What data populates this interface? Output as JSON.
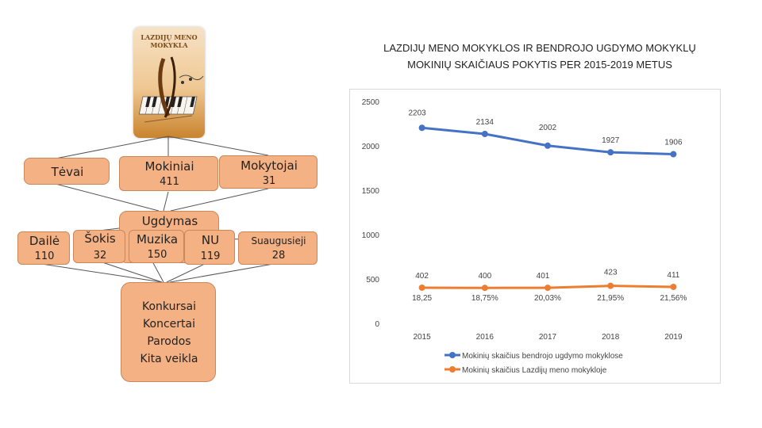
{
  "logo": {
    "line1": "LAZDIJŲ MENO",
    "line2": "MOKYKLA"
  },
  "org": {
    "tevai": "Tėvai",
    "mokiniai": {
      "label": "Mokiniai",
      "value": "411"
    },
    "mokytojai": {
      "label": "Mokytojai",
      "value": "31"
    },
    "ugdymas": "Ugdymas",
    "daile": {
      "label": "Dailė",
      "value": "110"
    },
    "sokis": {
      "label": "Šokis",
      "value": "32"
    },
    "muzika": {
      "label": "Muzika",
      "value": "150"
    },
    "nu": {
      "label": "NU",
      "value": "119"
    },
    "suaugusieji": {
      "label": "Suaugusieji",
      "value": "28"
    },
    "veikla": [
      "Konkursai",
      "Koncertai",
      "Parodos",
      "Kita veikla"
    ]
  },
  "colors": {
    "box": "#f4b183",
    "series_general": "#4472c4",
    "series_art": "#ed7d31"
  },
  "chart_data": {
    "type": "line",
    "title_lines": [
      "LAZDIJŲ MENO MOKYKLOS IR BENDROJO UGDYMO MOKYKLŲ",
      "MOKINIŲ SKAIČIAUS POKYTIS PER 2015-2019 METUS"
    ],
    "categories": [
      "2015",
      "2016",
      "2017",
      "2018",
      "2019"
    ],
    "ylim": [
      0,
      2500
    ],
    "yticks": [
      "0",
      "500",
      "1000",
      "1500",
      "2000",
      "2500"
    ],
    "series": [
      {
        "name": "Mokinių skaičius bendrojo ugdymo mokyklose",
        "values": [
          2203,
          2134,
          2002,
          1927,
          1906
        ],
        "labels": [
          "2203",
          "2134",
          "2002",
          "1927",
          "1906"
        ]
      },
      {
        "name": "Mokinių skaičius Lazdijų meno mokykloje",
        "values": [
          402,
          400,
          401,
          423,
          411
        ],
        "labels": [
          "402",
          "400",
          "401",
          "423",
          "411"
        ]
      }
    ],
    "percent_labels": [
      "18,25",
      "18,75%",
      "20,03%",
      "21,95%",
      "21,56%"
    ],
    "legend_position": "bottom",
    "grid": false
  }
}
